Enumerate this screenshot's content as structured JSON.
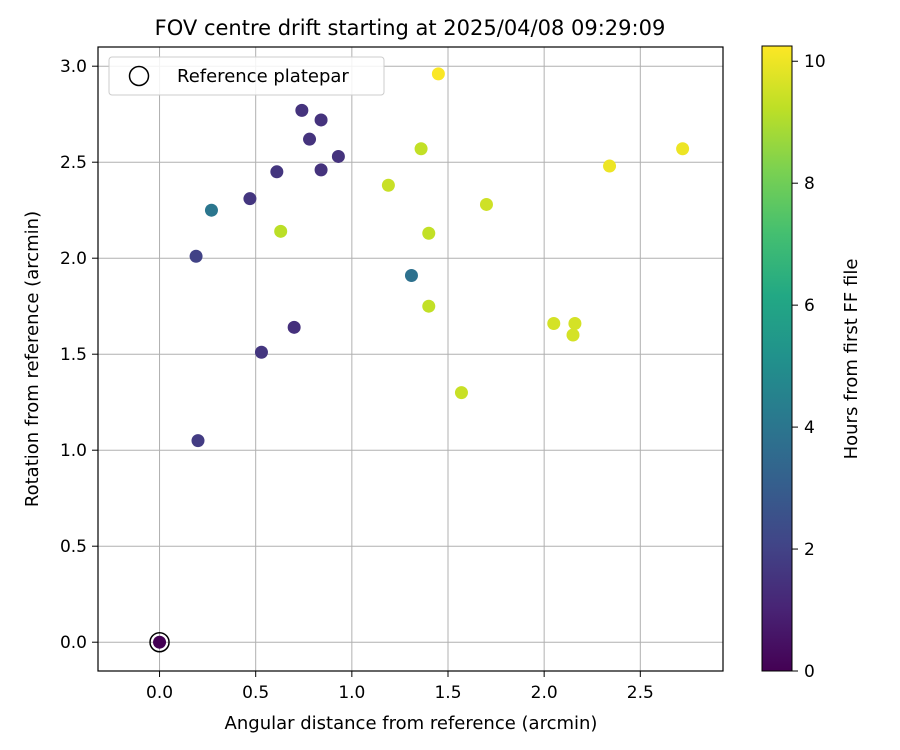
{
  "chart_data": {
    "type": "scatter",
    "title": "FOV centre drift starting at 2025/04/08 09:29:09",
    "xlabel": "Angular distance from reference (arcmin)",
    "ylabel": "Rotation from reference (arcmin)",
    "xlim": [
      -0.32,
      2.93
    ],
    "ylim": [
      -0.15,
      3.1
    ],
    "xticks": [
      0.0,
      0.5,
      1.0,
      1.5,
      2.0,
      2.5
    ],
    "xtick_labels": [
      "0.0",
      "0.5",
      "1.0",
      "1.5",
      "2.0",
      "2.5"
    ],
    "yticks": [
      0.0,
      0.5,
      1.0,
      1.5,
      2.0,
      2.5,
      3.0
    ],
    "ytick_labels": [
      "0.0",
      "0.5",
      "1.0",
      "1.5",
      "2.0",
      "2.5",
      "3.0"
    ],
    "grid": true,
    "legend": {
      "placement": "upper-left",
      "entries": [
        "Reference platepar"
      ]
    },
    "colorbar": {
      "label": "Hours from first FF file",
      "colormap": "viridis",
      "range": [
        0,
        10.25
      ],
      "ticks": [
        0,
        2,
        4,
        6,
        8,
        10
      ],
      "tick_labels": [
        "0",
        "2",
        "4",
        "6",
        "8",
        "10"
      ]
    },
    "reference": {
      "x": 0.0,
      "y": 0.0
    },
    "points": [
      {
        "x": 0.0,
        "y": 0.0,
        "c": 0.0
      },
      {
        "x": 0.2,
        "y": 1.05,
        "c": 1.8
      },
      {
        "x": 0.53,
        "y": 1.51,
        "c": 1.6
      },
      {
        "x": 0.7,
        "y": 1.64,
        "c": 1.4
      },
      {
        "x": 0.19,
        "y": 2.01,
        "c": 2.0
      },
      {
        "x": 0.47,
        "y": 2.31,
        "c": 1.6
      },
      {
        "x": 0.61,
        "y": 2.45,
        "c": 1.6
      },
      {
        "x": 0.74,
        "y": 2.77,
        "c": 1.5
      },
      {
        "x": 0.78,
        "y": 2.62,
        "c": 1.5
      },
      {
        "x": 0.84,
        "y": 2.72,
        "c": 1.5
      },
      {
        "x": 0.84,
        "y": 2.46,
        "c": 1.5
      },
      {
        "x": 0.93,
        "y": 2.53,
        "c": 1.5
      },
      {
        "x": 0.27,
        "y": 2.25,
        "c": 4.0
      },
      {
        "x": 1.31,
        "y": 1.91,
        "c": 3.8
      },
      {
        "x": 0.63,
        "y": 2.14,
        "c": 9.2
      },
      {
        "x": 1.19,
        "y": 2.38,
        "c": 9.4
      },
      {
        "x": 1.36,
        "y": 2.57,
        "c": 9.3
      },
      {
        "x": 1.4,
        "y": 2.13,
        "c": 9.3
      },
      {
        "x": 1.4,
        "y": 1.75,
        "c": 9.3
      },
      {
        "x": 1.45,
        "y": 2.96,
        "c": 10.2
      },
      {
        "x": 1.57,
        "y": 1.3,
        "c": 9.4
      },
      {
        "x": 1.7,
        "y": 2.28,
        "c": 9.5
      },
      {
        "x": 2.05,
        "y": 1.66,
        "c": 9.6
      },
      {
        "x": 2.15,
        "y": 1.6,
        "c": 9.6
      },
      {
        "x": 2.16,
        "y": 1.66,
        "c": 9.6
      },
      {
        "x": 2.34,
        "y": 2.48,
        "c": 10.0
      },
      {
        "x": 2.72,
        "y": 2.57,
        "c": 10.0
      }
    ]
  }
}
